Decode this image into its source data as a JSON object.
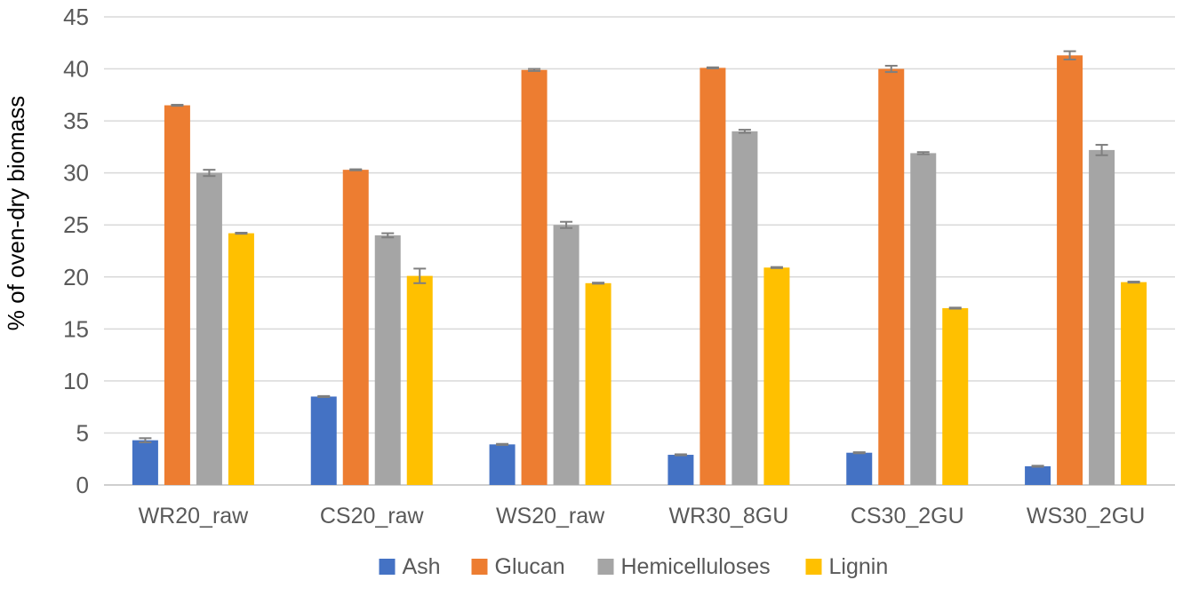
{
  "chart_data": {
    "type": "bar",
    "title": "",
    "xlabel": "",
    "ylabel": "% of oven-dry biomass",
    "ylim": [
      0,
      45
    ],
    "yticks": [
      0,
      5,
      10,
      15,
      20,
      25,
      30,
      35,
      40,
      45
    ],
    "grid": true,
    "legend_position": "bottom",
    "categories": [
      "WR20_raw",
      "CS20_raw",
      "WS20_raw",
      "WR30_8GU",
      "CS30_2GU",
      "WS30_2GU"
    ],
    "series": [
      {
        "name": "Ash",
        "color": "#4472C4",
        "values": [
          4.3,
          8.5,
          3.9,
          2.9,
          3.1,
          1.8
        ],
        "errors": [
          0.2,
          0.05,
          0.05,
          0.05,
          0.05,
          0.05
        ]
      },
      {
        "name": "Glucan",
        "color": "#ED7D31",
        "values": [
          36.5,
          30.3,
          39.9,
          40.1,
          40.0,
          41.3
        ],
        "errors": [
          0.05,
          0.05,
          0.1,
          0.05,
          0.3,
          0.4
        ]
      },
      {
        "name": "Hemicelluloses",
        "color": "#A5A5A5",
        "values": [
          30.0,
          24.0,
          25.0,
          34.0,
          31.9,
          32.2
        ],
        "errors": [
          0.3,
          0.2,
          0.3,
          0.15,
          0.1,
          0.5
        ]
      },
      {
        "name": "Lignin",
        "color": "#FFC000",
        "values": [
          24.2,
          20.1,
          19.4,
          20.9,
          17.0,
          19.5
        ],
        "errors": [
          0.05,
          0.7,
          0.05,
          0.05,
          0.05,
          0.05
        ]
      }
    ]
  }
}
